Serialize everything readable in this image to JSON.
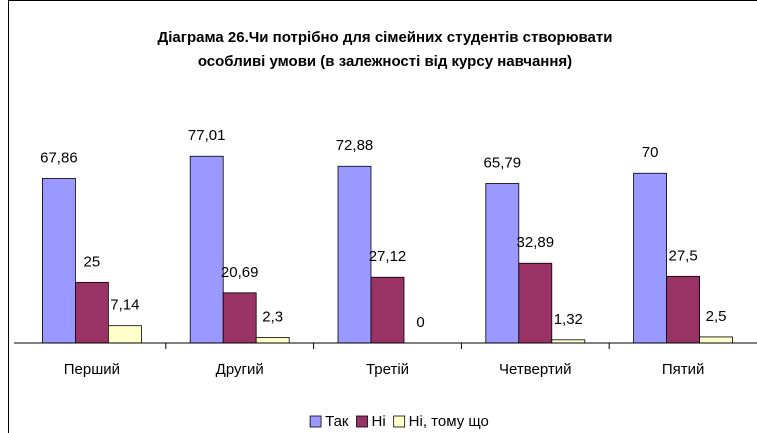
{
  "chart_data": {
    "type": "bar",
    "title": [
      "Діаграма 26.Чи потрібно для сімейних студентів створювати",
      "особливі умови (в залежності від курсу навчання)"
    ],
    "categories": [
      "Перший",
      "Другий",
      "Третій",
      "Четвертий",
      "Пятий"
    ],
    "series": [
      {
        "name": "Так",
        "color": "#9999ff",
        "values": [
          67.86,
          77.01,
          72.88,
          65.79,
          70
        ],
        "value_labels": [
          "67,86",
          "77,01",
          "72,88",
          "65,79",
          "70"
        ]
      },
      {
        "name": "Ні",
        "color": "#993366",
        "values": [
          25,
          20.69,
          27.12,
          32.89,
          27.5
        ],
        "value_labels": [
          "25",
          "20,69",
          "27,12",
          "32,89",
          "27,5"
        ]
      },
      {
        "name": "Ні, тому що",
        "color": "#ffffcc",
        "values": [
          7.14,
          2.3,
          0,
          1.32,
          2.5
        ],
        "value_labels": [
          "7,14",
          "2,3",
          "0",
          "1,32",
          "2,5"
        ]
      }
    ],
    "ylim": [
      0,
      80
    ],
    "legend": "bottom"
  }
}
